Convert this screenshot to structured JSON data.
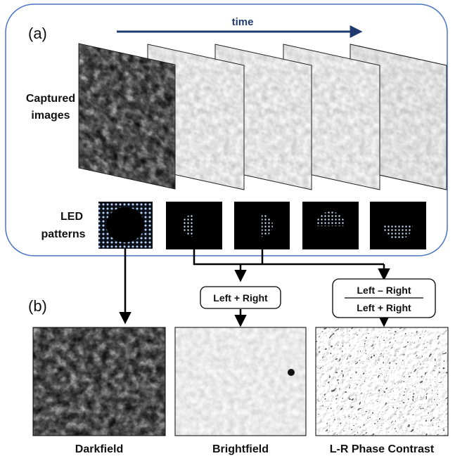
{
  "panel_a": {
    "letter": "(a)",
    "time_label": "time",
    "captured_label_line1": "Captured",
    "captured_label_line2": "images",
    "led_label_line1": "LED",
    "led_label_line2": "patterns",
    "led_patterns": [
      "darkfield-ring",
      "left-half",
      "right-half",
      "top-half",
      "bottom-half"
    ]
  },
  "panel_b": {
    "letter": "(b)",
    "sum_box": "Left + Right",
    "ratio_numerator": "Left – Right",
    "ratio_denominator": "Left + Right",
    "outputs": [
      "Darkfield",
      "Brightfield",
      "L-R Phase Contrast"
    ]
  },
  "colors": {
    "frame_border": "#4a72c4",
    "time_arrow": "#1f3a6e",
    "led_dot": "#bcd7ff"
  }
}
